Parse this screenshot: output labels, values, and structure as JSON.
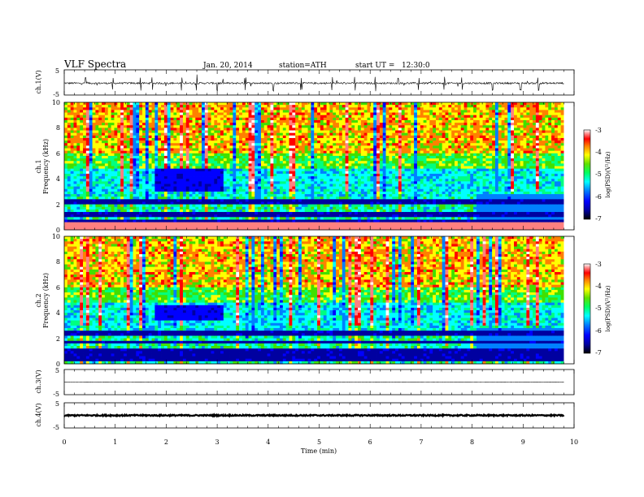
{
  "header": {
    "title": "VLF Spectra",
    "date": "Jan. 20, 2014",
    "station": "station=ATH",
    "start": "start UT =   12:30:0"
  },
  "chart_data": [
    {
      "type": "line",
      "panel": "ch.1 waveform",
      "ylabel": "ch.1(V)",
      "yticks": [
        "5",
        "-5"
      ],
      "ylim": [
        -5,
        5
      ],
      "xlim": [
        0,
        9.8
      ],
      "baseline": -0.3,
      "noise": 0.35,
      "spike_times": [
        0.42,
        0.95,
        1.5,
        1.73,
        2.3,
        2.6,
        3.0,
        3.55,
        4.1,
        4.65,
        5.25,
        5.7,
        6.1,
        6.55,
        6.95,
        7.45,
        7.8,
        8.4,
        8.95,
        9.3
      ]
    },
    {
      "type": "heatmap",
      "panel": "ch.1 spectrogram",
      "ylabel": "Frequency (kHz)",
      "channel_label": "ch.1",
      "yticks": [
        "0",
        "2",
        "4",
        "6",
        "8",
        "10"
      ],
      "ylim": [
        0,
        10
      ],
      "xlim": [
        0,
        9.8
      ],
      "colorbar": {
        "label": "log(PSD)(V²/Hz)",
        "ticks": [
          "-3",
          "-4",
          "-5",
          "-6",
          "-7"
        ],
        "range": [
          -7,
          -3
        ]
      },
      "blue_patch": {
        "t_start": 1.8,
        "t_end": 3.1,
        "f_low": 3.0,
        "f_high": 4.8
      },
      "strong_lines_khz": [
        0.2,
        0.45,
        0.75,
        1.2,
        2.2
      ]
    },
    {
      "type": "heatmap",
      "panel": "ch.2 spectrogram",
      "ylabel": "Frequency (kHz)",
      "channel_label": "ch.2",
      "yticks": [
        "0",
        "2",
        "4",
        "6",
        "8",
        "10"
      ],
      "ylim": [
        0,
        10
      ],
      "xlim": [
        0,
        9.8
      ],
      "colorbar": {
        "label": "log(PSD)(V²/Hz)",
        "ticks": [
          "-3",
          "-4",
          "-5",
          "-6",
          "-7"
        ],
        "range": [
          -7,
          -3
        ]
      },
      "blue_patch": {
        "t_start": 1.8,
        "t_end": 3.1,
        "f_low": 3.4,
        "f_high": 4.6
      },
      "strong_lines_khz": [
        0.3,
        0.6,
        1.0,
        1.7,
        2.4
      ]
    },
    {
      "type": "line",
      "panel": "ch.3 waveform",
      "ylabel": "ch.3(V)",
      "yticks": [
        "5",
        "-5"
      ],
      "ylim": [
        -5,
        5
      ],
      "xlim": [
        0,
        9.8
      ],
      "baseline": 0.0,
      "noise": 0.05
    },
    {
      "type": "line",
      "panel": "ch.4 waveform",
      "ylabel": "ch.4(V)",
      "yticks": [
        "5",
        "-5"
      ],
      "ylim": [
        -5,
        5
      ],
      "xlim": [
        0,
        9.8
      ],
      "baseline": 0.0,
      "noise": 0.25
    }
  ],
  "x_axis": {
    "label": "Time (min)",
    "ticks": [
      "0",
      "1",
      "2",
      "3",
      "4",
      "5",
      "6",
      "7",
      "8",
      "9",
      "10"
    ],
    "range": [
      0,
      10
    ]
  },
  "colors": {
    "colormap": [
      "#000000",
      "#0000a0",
      "#0000ff",
      "#0080ff",
      "#00ffff",
      "#00ff80",
      "#40e000",
      "#ffff00",
      "#ff8000",
      "#ff0000",
      "#ff8080",
      "#ffffff"
    ]
  }
}
